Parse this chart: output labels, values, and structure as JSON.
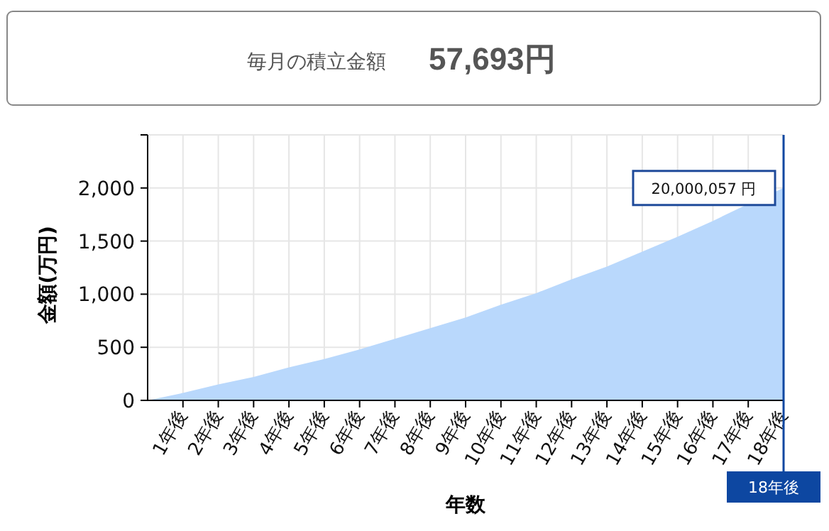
{
  "chart_data": {
    "type": "area",
    "title": "毎月の積立金額",
    "subtitle": "57,693円",
    "xlabel": "年数",
    "ylabel": "金額(万円)",
    "x": [
      0,
      1,
      2,
      3,
      4,
      5,
      6,
      7,
      8,
      9,
      10,
      11,
      12,
      13,
      14,
      15,
      16,
      17,
      18
    ],
    "series": [
      {
        "color": "#b9d8fc",
        "values": [
          0,
          70,
          150,
          220,
          310,
          390,
          480,
          580,
          680,
          780,
          900,
          1010,
          1140,
          1260,
          1400,
          1540,
          1690,
          1850,
          2000
        ]
      }
    ],
    "xlim": [
      0,
      18
    ],
    "xticks": [
      {
        "value": 1,
        "label": "1年後"
      },
      {
        "value": 2,
        "label": "2年後"
      },
      {
        "value": 3,
        "label": "3年後"
      },
      {
        "value": 4,
        "label": "4年後"
      },
      {
        "value": 5,
        "label": "5年後"
      },
      {
        "value": 6,
        "label": "6年後"
      },
      {
        "value": 7,
        "label": "7年後"
      },
      {
        "value": 8,
        "label": "8年後"
      },
      {
        "value": 9,
        "label": "9年後"
      },
      {
        "value": 10,
        "label": "10年後"
      },
      {
        "value": 11,
        "label": "11年後"
      },
      {
        "value": 12,
        "label": "12年後"
      },
      {
        "value": 13,
        "label": "13年後"
      },
      {
        "value": 14,
        "label": "14年後"
      },
      {
        "value": 15,
        "label": "15年後"
      },
      {
        "value": 16,
        "label": "16年後"
      },
      {
        "value": 17,
        "label": "17年後"
      },
      {
        "value": 18,
        "label": "18年後"
      }
    ],
    "ylim": [
      0,
      2500
    ],
    "yticks": [
      {
        "value": 0,
        "label": "0"
      },
      {
        "value": 500,
        "label": "500"
      },
      {
        "value": 1000,
        "label": "1,000"
      },
      {
        "value": 1500,
        "label": "1,500"
      },
      {
        "value": 2000,
        "label": "2,000"
      },
      {
        "value": 2500,
        "label": null
      }
    ],
    "ref_lines": [
      {
        "axis": "x",
        "value": 18,
        "label": "18年後",
        "color": "#0d47a1"
      }
    ],
    "annotations": [
      {
        "text": "20,000,057 円",
        "x": 18,
        "y": 2000
      }
    ],
    "grid": true
  }
}
